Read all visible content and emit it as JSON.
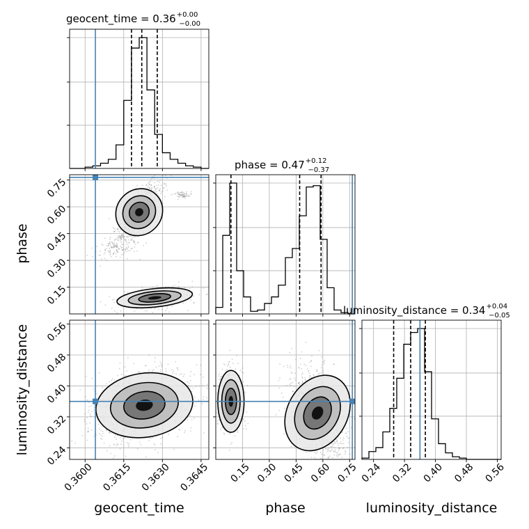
{
  "chart_data": {
    "type": "corner",
    "parameters": [
      "geocent_time",
      "phase",
      "luminosity_distance"
    ],
    "truth": {
      "geocent_time": 0.3604,
      "phase": 0.765,
      "luminosity_distance": 0.36
    },
    "titles": [
      {
        "param": "geocent_time",
        "text": "geocent_time = 0.36",
        "sup": "+0.00",
        "sub": "−0.00"
      },
      {
        "param": "phase",
        "text": "phase = 0.47",
        "sup": "+0.12",
        "sub": "−0.37"
      },
      {
        "param": "luminosity_distance",
        "text": "luminosity_distance = 0.34",
        "sup": "+0.04",
        "sub": "−0.05"
      }
    ],
    "axes": {
      "geocent_time": {
        "label": "geocent_time",
        "range": [
          0.3594,
          0.3648
        ],
        "ticks": [
          0.36,
          0.3615,
          0.363,
          0.3645
        ],
        "tick_labels": [
          "0.3600",
          "0.3615",
          "0.3630",
          "0.3645"
        ]
      },
      "phase": {
        "label": "phase",
        "range": [
          0.0,
          0.78
        ],
        "ticks": [
          0.15,
          0.3,
          0.45,
          0.6,
          0.75
        ],
        "tick_labels": [
          "0.15",
          "0.30",
          "0.45",
          "0.60",
          "0.75"
        ]
      },
      "luminosity_distance": {
        "label": "luminosity_distance",
        "range": [
          0.21,
          0.57
        ],
        "ticks": [
          0.24,
          0.32,
          0.4,
          0.48,
          0.56
        ],
        "tick_labels": [
          "0.24",
          "0.32",
          "0.40",
          "0.48",
          "0.56"
        ]
      }
    },
    "marginals": {
      "geocent_time": {
        "edges": [
          0.3594,
          0.3597,
          0.36,
          0.3603,
          0.3606,
          0.3609,
          0.3612,
          0.3615,
          0.3618,
          0.3621,
          0.3624,
          0.3627,
          0.363,
          0.3633,
          0.3636,
          0.3639,
          0.3642,
          0.3645,
          0.3648
        ],
        "counts": [
          0,
          0,
          1,
          2,
          4,
          7,
          18,
          52,
          92,
          100,
          60,
          26,
          12,
          7,
          4,
          2,
          1,
          0
        ],
        "quantiles": [
          0.3618,
          0.3622,
          0.3628
        ]
      },
      "phase": {
        "edges": [
          0.0,
          0.039,
          0.078,
          0.117,
          0.156,
          0.195,
          0.234,
          0.273,
          0.312,
          0.351,
          0.39,
          0.429,
          0.468,
          0.507,
          0.546,
          0.585,
          0.624,
          0.663,
          0.702,
          0.741,
          0.78
        ],
        "counts": [
          5,
          60,
          100,
          33,
          13,
          2,
          3,
          8,
          13,
          22,
          43,
          50,
          75,
          97,
          98,
          57,
          20,
          3,
          1,
          0
        ],
        "quantiles": [
          0.085,
          0.47,
          0.59
        ]
      },
      "luminosity_distance": {
        "edges": [
          0.21,
          0.228,
          0.246,
          0.264,
          0.282,
          0.3,
          0.318,
          0.336,
          0.354,
          0.372,
          0.39,
          0.408,
          0.426,
          0.444,
          0.462,
          0.48,
          0.498,
          0.516,
          0.534,
          0.552,
          0.57
        ],
        "counts": [
          1,
          6,
          9,
          21,
          39,
          62,
          88,
          97,
          100,
          67,
          31,
          12,
          5,
          2,
          1,
          0,
          0,
          0,
          0,
          0
        ],
        "quantiles": [
          0.292,
          0.336,
          0.374
        ]
      }
    },
    "grid": true
  }
}
